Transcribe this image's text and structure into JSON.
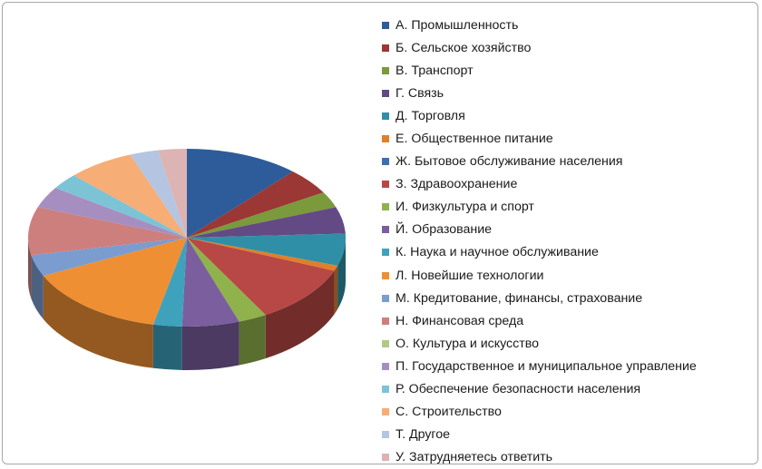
{
  "chart_data": {
    "type": "pie",
    "style": "3d",
    "legend_position": "right",
    "title": "",
    "categories": [
      "А. Промышленность",
      "Б. Сельское хозяйство",
      "В. Транспорт",
      "Г. Связь",
      "Д. Торговля",
      "Е. Общественное питание",
      "Ж. Бытовое обслуживание населения",
      "З. Здравоохранение",
      "И. Физкультура и спорт",
      "Й. Образование",
      "К. Наука и научное обслуживание",
      "Л. Новейшие технологии",
      "М. Кредитование, финансы, страхование",
      "Н. Финансовая среда",
      "О. Культура и искусство",
      "П. Государственное и муниципальное управление",
      "Р. Обеспечение безопасности населения",
      "С. Строительство",
      "Т. Другое",
      "У. Затрудняетесь ответить"
    ],
    "values": [
      12,
      5,
      3,
      5,
      6,
      1,
      0,
      11,
      3,
      6,
      3,
      15,
      4,
      9,
      0,
      4,
      3,
      7,
      3,
      3
    ],
    "colors": [
      "#2e5c9a",
      "#9b3734",
      "#7a9a3c",
      "#634a84",
      "#2f8fa6",
      "#e07f2a",
      "#3e70b0",
      "#b84845",
      "#8fb24c",
      "#7b5e9e",
      "#3ea2bd",
      "#ef8f33",
      "#7b9ccf",
      "#cd7f7d",
      "#b2c985",
      "#a68fc0",
      "#7dc3d6",
      "#f6ad76",
      "#b4c5e2",
      "#dcb4b3"
    ]
  }
}
